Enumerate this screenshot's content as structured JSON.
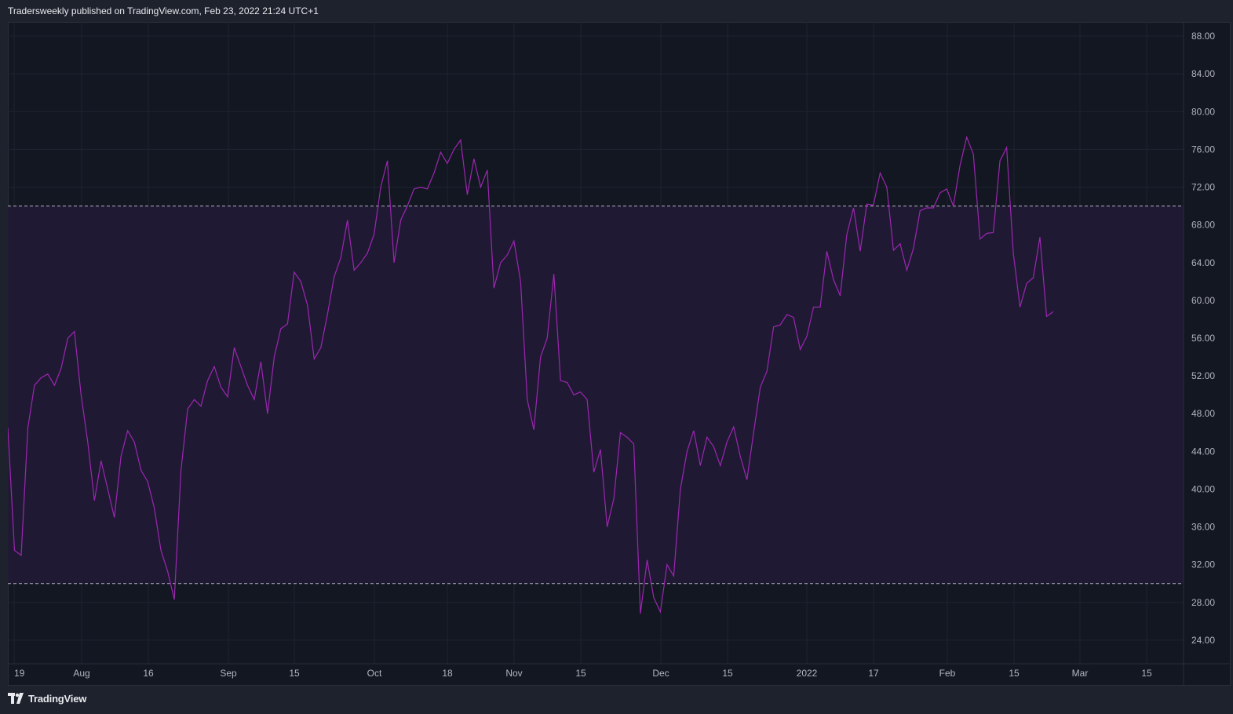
{
  "header": {
    "published_text": "Tradersweekly published on TradingView.com, Feb 23, 2022 21:24 UTC+1"
  },
  "footer": {
    "logo_text": "TradingView",
    "logo_icon": "tradingview-logo-icon"
  },
  "colors": {
    "background": "#131722",
    "band_fill": "#211936",
    "line": "#9c27b0",
    "grid": "#1f2331",
    "band_lines": "#b2b5be"
  },
  "chart_data": {
    "type": "line",
    "title": "",
    "xlabel": "",
    "ylabel": "",
    "ylim": [
      21.5,
      89.5
    ],
    "y_ticks": [
      "88.00",
      "84.00",
      "80.00",
      "76.00",
      "72.00",
      "68.00",
      "64.00",
      "60.00",
      "56.00",
      "52.00",
      "48.00",
      "44.00",
      "40.00",
      "36.00",
      "32.00",
      "28.00",
      "24.00"
    ],
    "x_ticks": [
      "19",
      "Aug",
      "16",
      "Sep",
      "15",
      "Oct",
      "18",
      "Nov",
      "15",
      "Dec",
      "15",
      "2022",
      "17",
      "Feb",
      "15",
      "Mar",
      "15"
    ],
    "bands": {
      "upper": 70,
      "lower": 30
    },
    "grid": true,
    "legend": "none",
    "series": [
      {
        "values": [
          46.5,
          33.5,
          33.0,
          46.5,
          51.0,
          51.8,
          52.2,
          51.0,
          52.8,
          56.0,
          56.7,
          50.0,
          45.0,
          38.8,
          43.0,
          40.0,
          37.0,
          43.5,
          46.2,
          45.0,
          42.0,
          40.8,
          38.0,
          33.5,
          31.3,
          28.3,
          42.0,
          48.5,
          49.5,
          48.8,
          51.5,
          53.0,
          50.8,
          49.8,
          55.0,
          53.0,
          51.0,
          49.5,
          53.5,
          48.0,
          54.0,
          57.0,
          57.5,
          63.0,
          62.0,
          59.5,
          53.8,
          55.0,
          58.5,
          62.5,
          64.5,
          68.5,
          63.2,
          64.0,
          65.0,
          67.0,
          72.0,
          74.8,
          64.0,
          68.5,
          70.0,
          71.8,
          72.0,
          71.8,
          73.5,
          75.7,
          74.5,
          76.0,
          77.0,
          71.2,
          75.0,
          72.0,
          73.8,
          61.3,
          64.0,
          64.8,
          66.3,
          62.0,
          49.5,
          46.3,
          54.0,
          56.0,
          62.8,
          51.5,
          51.3,
          50.0,
          50.3,
          49.5,
          41.8,
          44.2,
          36.0,
          39.0,
          46.0,
          45.5,
          44.8,
          26.8,
          32.5,
          28.5,
          27.0,
          32.0,
          30.8,
          40.0,
          44.0,
          46.2,
          42.5,
          45.5,
          44.5,
          42.5,
          45.0,
          46.6,
          43.5,
          41.0,
          46.0,
          50.8,
          52.5,
          57.2,
          57.4,
          58.5,
          58.2,
          54.8,
          56.2,
          59.3,
          59.3,
          65.2,
          62.2,
          60.5,
          67.0,
          69.8,
          65.2,
          70.2,
          70.1,
          73.5,
          72.0,
          65.3,
          66.0,
          63.2,
          65.5,
          69.5,
          69.8,
          69.8,
          71.4,
          71.8,
          70.0,
          74.3,
          77.3,
          75.5,
          66.5,
          67.1,
          67.2,
          74.8,
          76.2,
          65.0,
          59.3,
          61.8,
          62.4,
          66.7,
          58.3,
          58.8
        ]
      }
    ]
  }
}
